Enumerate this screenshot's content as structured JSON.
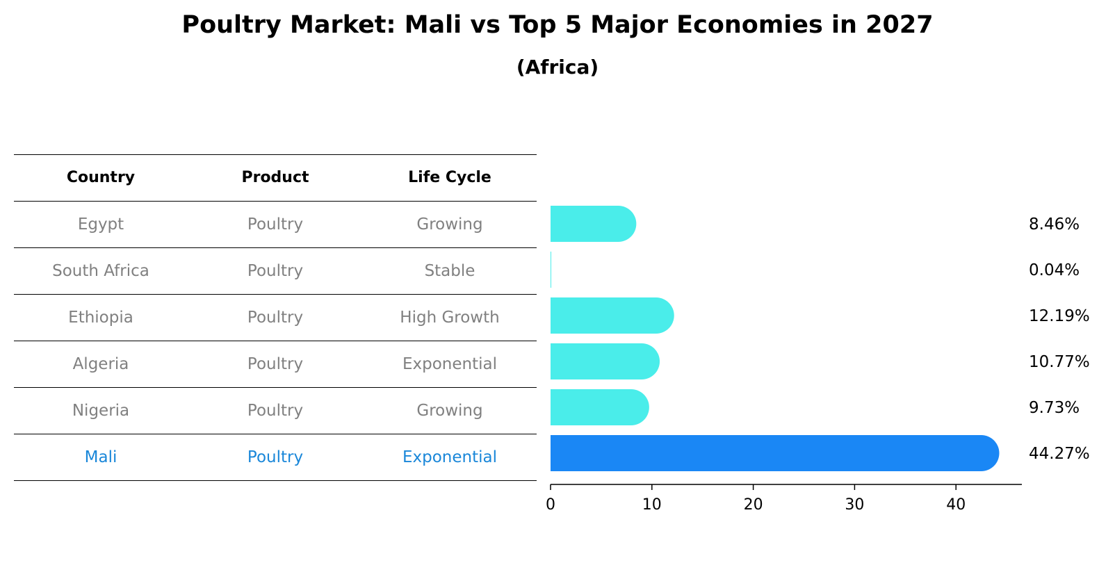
{
  "title": "Poultry Market: Mali vs Top 5 Major Economies in 2027",
  "subtitle": "(Africa)",
  "table": {
    "headers": [
      "Country",
      "Product",
      "Life Cycle"
    ],
    "rows": [
      {
        "country": "Egypt",
        "product": "Poultry",
        "life_cycle": "Growing"
      },
      {
        "country": "South Africa",
        "product": "Poultry",
        "life_cycle": "Stable"
      },
      {
        "country": "Ethiopia",
        "product": "Poultry",
        "life_cycle": "High Growth"
      },
      {
        "country": "Algeria",
        "product": "Poultry",
        "life_cycle": "Exponential"
      },
      {
        "country": "Nigeria",
        "product": "Poultry",
        "life_cycle": "Growing"
      },
      {
        "country": "Mali",
        "product": "Poultry",
        "life_cycle": "Exponential"
      }
    ],
    "highlight_row": 5
  },
  "chart_data": {
    "type": "bar",
    "orientation": "horizontal",
    "title": "Poultry Market: Mali vs Top 5 Major Economies in 2027",
    "subtitle": "(Africa)",
    "categories": [
      "Egypt",
      "South Africa",
      "Ethiopia",
      "Algeria",
      "Nigeria",
      "Mali"
    ],
    "values": [
      8.46,
      0.04,
      12.19,
      10.77,
      9.73,
      44.27
    ],
    "labels": [
      "8.46%",
      "0.04%",
      "12.19%",
      "10.77%",
      "9.73%",
      "44.27%"
    ],
    "xticks": [
      0,
      10,
      20,
      30,
      40
    ],
    "xlim": [
      0,
      46.5
    ],
    "highlight_index": 5,
    "colors": {
      "default": "#4aedea",
      "highlight": "#1a87f5",
      "axis": "#000000",
      "label": "#000000"
    }
  }
}
